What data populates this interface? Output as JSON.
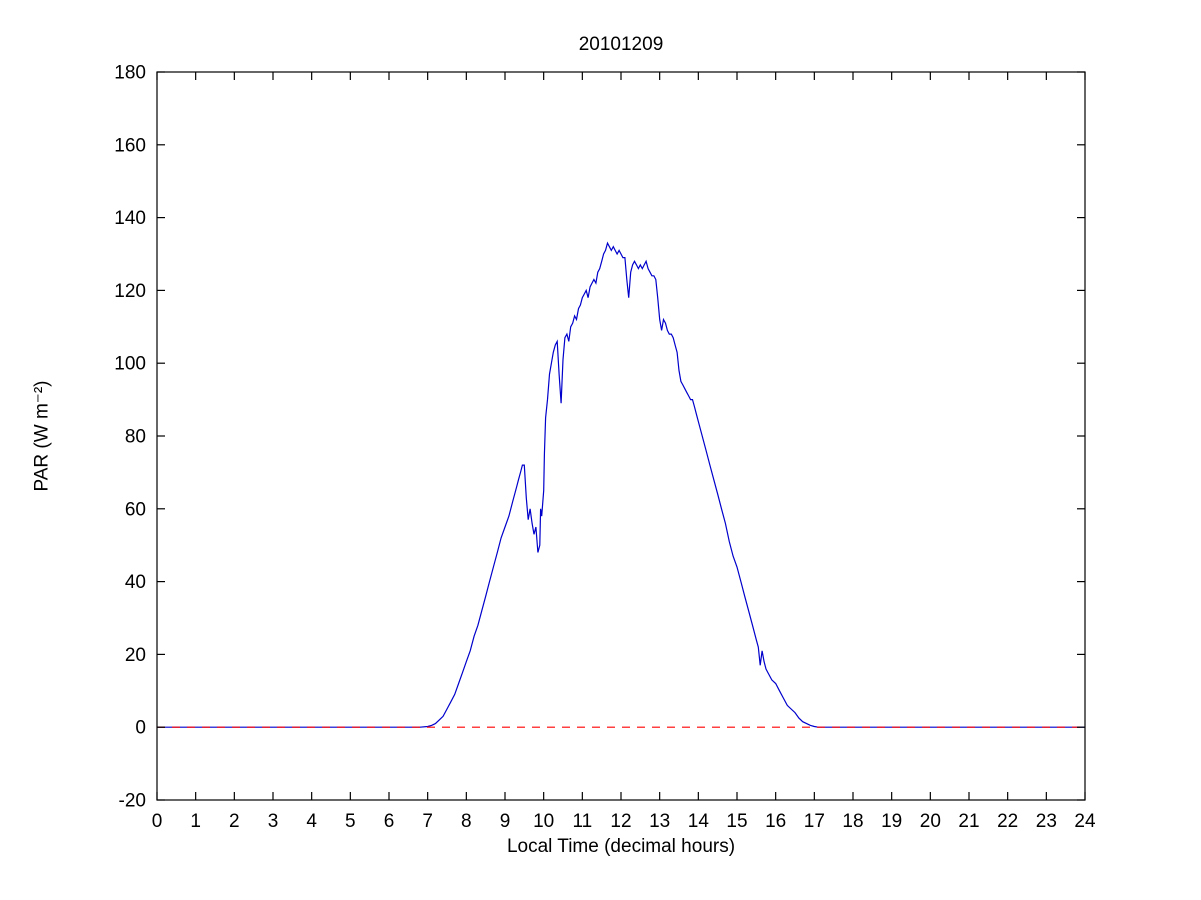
{
  "figure": {
    "background": "#FFFFFF"
  },
  "chart_data": {
    "type": "line",
    "title": "20101209",
    "xlabel": "Local Time (decimal hours)",
    "ylabel": "PAR (W m⁻²)",
    "xlim": [
      0,
      24
    ],
    "ylim": [
      -20,
      180
    ],
    "xticks": [
      0,
      1,
      2,
      3,
      4,
      5,
      6,
      7,
      8,
      9,
      10,
      11,
      12,
      13,
      14,
      15,
      16,
      17,
      18,
      19,
      20,
      21,
      22,
      23,
      24
    ],
    "yticks": [
      -20,
      0,
      20,
      40,
      60,
      80,
      100,
      120,
      140,
      160,
      180
    ],
    "grid": false,
    "axis_color": "#000000",
    "series": [
      {
        "name": "par",
        "color": "#0000CC",
        "style": "solid",
        "points": [
          [
            0,
            0
          ],
          [
            0.5,
            0
          ],
          [
            1,
            0
          ],
          [
            1.5,
            0
          ],
          [
            2,
            0
          ],
          [
            2.5,
            0
          ],
          [
            3,
            0
          ],
          [
            3.5,
            0
          ],
          [
            4,
            0
          ],
          [
            4.5,
            0
          ],
          [
            5,
            0
          ],
          [
            5.5,
            0
          ],
          [
            6,
            0
          ],
          [
            6.5,
            0
          ],
          [
            6.8,
            0
          ],
          [
            7.0,
            0.2
          ],
          [
            7.1,
            0.5
          ],
          [
            7.2,
            1
          ],
          [
            7.3,
            2
          ],
          [
            7.4,
            3
          ],
          [
            7.5,
            5
          ],
          [
            7.6,
            7
          ],
          [
            7.7,
            9
          ],
          [
            7.8,
            12
          ],
          [
            7.9,
            15
          ],
          [
            8.0,
            18
          ],
          [
            8.1,
            21
          ],
          [
            8.2,
            25
          ],
          [
            8.3,
            28
          ],
          [
            8.4,
            32
          ],
          [
            8.5,
            36
          ],
          [
            8.6,
            40
          ],
          [
            8.7,
            44
          ],
          [
            8.8,
            48
          ],
          [
            8.9,
            52
          ],
          [
            9.0,
            55
          ],
          [
            9.1,
            58
          ],
          [
            9.2,
            62
          ],
          [
            9.3,
            66
          ],
          [
            9.35,
            68
          ],
          [
            9.4,
            70
          ],
          [
            9.45,
            72
          ],
          [
            9.5,
            72
          ],
          [
            9.55,
            63
          ],
          [
            9.6,
            57
          ],
          [
            9.65,
            60
          ],
          [
            9.7,
            56
          ],
          [
            9.75,
            53
          ],
          [
            9.8,
            55
          ],
          [
            9.85,
            48
          ],
          [
            9.9,
            50
          ],
          [
            9.92,
            60
          ],
          [
            9.95,
            58
          ],
          [
            10.0,
            65
          ],
          [
            10.02,
            75
          ],
          [
            10.05,
            85
          ],
          [
            10.1,
            90
          ],
          [
            10.15,
            97
          ],
          [
            10.2,
            100
          ],
          [
            10.25,
            103
          ],
          [
            10.3,
            105
          ],
          [
            10.35,
            106
          ],
          [
            10.4,
            97
          ],
          [
            10.45,
            89
          ],
          [
            10.5,
            101
          ],
          [
            10.55,
            107
          ],
          [
            10.6,
            108
          ],
          [
            10.65,
            106
          ],
          [
            10.7,
            110
          ],
          [
            10.75,
            111
          ],
          [
            10.8,
            113
          ],
          [
            10.85,
            112
          ],
          [
            10.9,
            115
          ],
          [
            10.95,
            116
          ],
          [
            11.0,
            118
          ],
          [
            11.05,
            119
          ],
          [
            11.1,
            120
          ],
          [
            11.15,
            118
          ],
          [
            11.2,
            121
          ],
          [
            11.25,
            122
          ],
          [
            11.3,
            123
          ],
          [
            11.35,
            122
          ],
          [
            11.4,
            125
          ],
          [
            11.45,
            126
          ],
          [
            11.5,
            128
          ],
          [
            11.55,
            130
          ],
          [
            11.6,
            131
          ],
          [
            11.65,
            133
          ],
          [
            11.7,
            132
          ],
          [
            11.75,
            131
          ],
          [
            11.8,
            132
          ],
          [
            11.85,
            131
          ],
          [
            11.9,
            130
          ],
          [
            11.95,
            131
          ],
          [
            12.0,
            130
          ],
          [
            12.05,
            129
          ],
          [
            12.1,
            129
          ],
          [
            12.15,
            123
          ],
          [
            12.2,
            118
          ],
          [
            12.25,
            125
          ],
          [
            12.3,
            127
          ],
          [
            12.35,
            128
          ],
          [
            12.4,
            127
          ],
          [
            12.45,
            126
          ],
          [
            12.5,
            127
          ],
          [
            12.55,
            126
          ],
          [
            12.6,
            127
          ],
          [
            12.65,
            128
          ],
          [
            12.7,
            126
          ],
          [
            12.75,
            125
          ],
          [
            12.8,
            124
          ],
          [
            12.85,
            124
          ],
          [
            12.9,
            123
          ],
          [
            12.95,
            118
          ],
          [
            13.0,
            112
          ],
          [
            13.05,
            109
          ],
          [
            13.1,
            112
          ],
          [
            13.15,
            111
          ],
          [
            13.2,
            109
          ],
          [
            13.25,
            108
          ],
          [
            13.3,
            108
          ],
          [
            13.35,
            107
          ],
          [
            13.4,
            105
          ],
          [
            13.45,
            103
          ],
          [
            13.5,
            98
          ],
          [
            13.55,
            95
          ],
          [
            13.6,
            94
          ],
          [
            13.65,
            93
          ],
          [
            13.7,
            92
          ],
          [
            13.75,
            91
          ],
          [
            13.8,
            90
          ],
          [
            13.85,
            90
          ],
          [
            13.9,
            88
          ],
          [
            13.95,
            86
          ],
          [
            14.0,
            84
          ],
          [
            14.1,
            80
          ],
          [
            14.2,
            76
          ],
          [
            14.3,
            72
          ],
          [
            14.4,
            68
          ],
          [
            14.5,
            64
          ],
          [
            14.6,
            60
          ],
          [
            14.7,
            56
          ],
          [
            14.8,
            51
          ],
          [
            14.9,
            47
          ],
          [
            15.0,
            44
          ],
          [
            15.1,
            40
          ],
          [
            15.2,
            36
          ],
          [
            15.3,
            32
          ],
          [
            15.4,
            28
          ],
          [
            15.5,
            24
          ],
          [
            15.55,
            22
          ],
          [
            15.6,
            17
          ],
          [
            15.65,
            21
          ],
          [
            15.7,
            18
          ],
          [
            15.75,
            16
          ],
          [
            15.8,
            15
          ],
          [
            15.9,
            13
          ],
          [
            16.0,
            12
          ],
          [
            16.1,
            10
          ],
          [
            16.2,
            8
          ],
          [
            16.3,
            6
          ],
          [
            16.4,
            5
          ],
          [
            16.5,
            4
          ],
          [
            16.6,
            2.5
          ],
          [
            16.7,
            1.5
          ],
          [
            16.8,
            1
          ],
          [
            16.9,
            0.5
          ],
          [
            17.0,
            0.2
          ],
          [
            17.1,
            0
          ],
          [
            17.5,
            0
          ],
          [
            18,
            0
          ],
          [
            18.5,
            0
          ],
          [
            19,
            0
          ],
          [
            19.5,
            0
          ],
          [
            20,
            0
          ],
          [
            20.5,
            0
          ],
          [
            21,
            0
          ],
          [
            21.5,
            0
          ],
          [
            22,
            0
          ],
          [
            22.5,
            0
          ],
          [
            23,
            0
          ],
          [
            23.5,
            0
          ],
          [
            24,
            0
          ]
        ]
      },
      {
        "name": "zero-line",
        "color": "#FF0000",
        "style": "dashed",
        "points": [
          [
            0,
            0
          ],
          [
            24,
            0
          ]
        ]
      }
    ]
  }
}
